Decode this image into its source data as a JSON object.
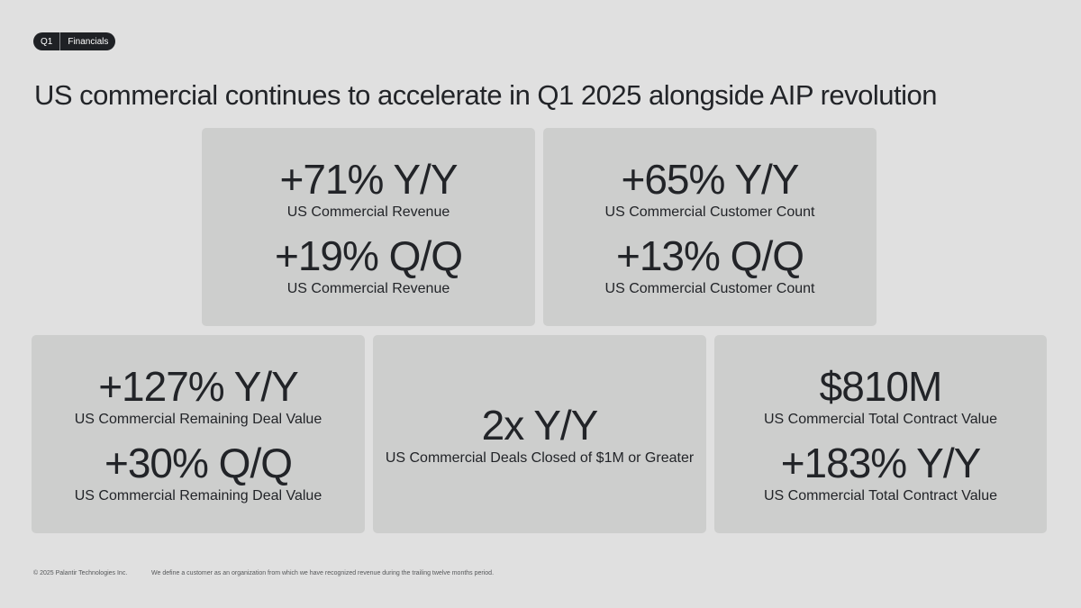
{
  "header": {
    "tag_quarter": "Q1",
    "tag_section": "Financials",
    "title": "US commercial continues to accelerate in Q1 2025 alongside AIP revolution"
  },
  "cards": {
    "revenue": {
      "yy_value": "+71% Y/Y",
      "yy_label": "US Commercial Revenue",
      "qq_value": "+19% Q/Q",
      "qq_label": "US Commercial Revenue"
    },
    "customers": {
      "yy_value": "+65% Y/Y",
      "yy_label": "US Commercial Customer Count",
      "qq_value": "+13% Q/Q",
      "qq_label": "US Commercial Customer Count"
    },
    "rdv": {
      "yy_value": "+127% Y/Y",
      "yy_label": "US Commercial Remaining Deal Value",
      "qq_value": "+30% Q/Q",
      "qq_label": "US Commercial Remaining Deal Value"
    },
    "deals": {
      "value": "2x Y/Y",
      "label": "US Commercial Deals Closed of $1M or Greater"
    },
    "tcv": {
      "total_value": "$810M",
      "total_label": "US Commercial Total Contract Value",
      "yy_value": "+183% Y/Y",
      "yy_label": "US Commercial Total Contract Value"
    }
  },
  "footer": {
    "copyright": "© 2025 Palantir Technologies Inc.",
    "note": "We define a customer as an organization from which we have recognized revenue during the trailing twelve months period."
  }
}
